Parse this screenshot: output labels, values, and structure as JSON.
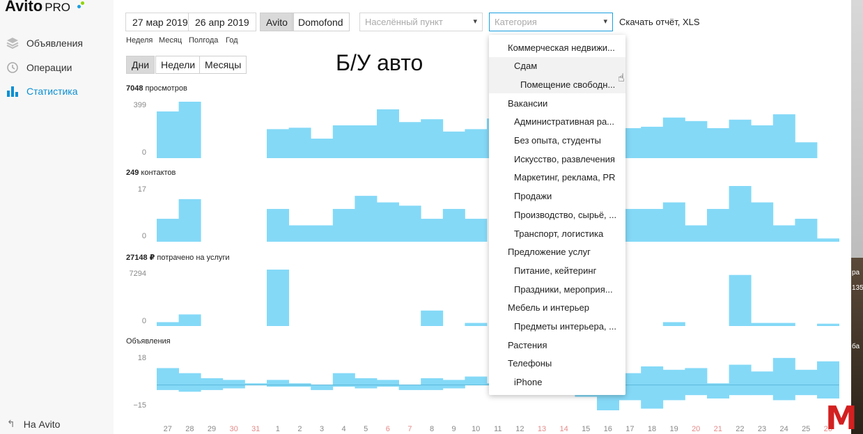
{
  "app": {
    "logo_text": "Avito",
    "logo_suffix": "PRO"
  },
  "sidebar": {
    "items": [
      {
        "label": "Объявления",
        "icon": "layers-icon"
      },
      {
        "label": "Операции",
        "icon": "history-icon"
      },
      {
        "label": "Статистика",
        "icon": "bar-chart-icon",
        "active": true
      }
    ],
    "bottom_link": "На Avito"
  },
  "toolbar": {
    "date_from": "27 мар 2019",
    "date_to": "26 апр 2019",
    "sources": [
      "Avito",
      "Domofond"
    ],
    "active_source": "Avito",
    "location_placeholder": "Населённый пункт",
    "category_placeholder": "Категория",
    "download_label": "Скачать отчёт, XLS",
    "periods": [
      "Неделя",
      "Месяц",
      "Полгода",
      "Год"
    ],
    "granularity": [
      "Дни",
      "Недели",
      "Месяцы"
    ],
    "active_granularity": "Дни"
  },
  "overlay_title": "Б/У авто",
  "charts": {
    "views": {
      "total": "7048",
      "label": "просмотров",
      "max_tick": "399",
      "min_tick": "0"
    },
    "contacts": {
      "total": "249",
      "label": "контактов",
      "max_tick": "17",
      "min_tick": "0"
    },
    "spent": {
      "total": "27148 ₽",
      "label": "потрачено на услуги",
      "max_tick": "7294",
      "min_tick": "0"
    },
    "ads": {
      "label": "Объявления",
      "max_tick": "18",
      "min_tick": "−15"
    }
  },
  "chart_data": [
    {
      "type": "bar",
      "title": "7048 просмотров",
      "categories": [
        "27",
        "28",
        "29",
        "30",
        "31",
        "1",
        "2",
        "3",
        "4",
        "5",
        "6",
        "7",
        "8",
        "9",
        "10",
        "11",
        "12",
        "13",
        "14",
        "15",
        "16",
        "17",
        "18",
        "19",
        "20",
        "21",
        "22",
        "23",
        "24",
        "25",
        "26"
      ],
      "values": [
        330,
        399,
        0,
        0,
        0,
        205,
        215,
        138,
        232,
        232,
        345,
        255,
        275,
        188,
        205,
        280,
        null,
        null,
        null,
        null,
        null,
        212,
        222,
        287,
        262,
        212,
        272,
        232,
        310,
        112,
        null
      ],
      "ylim": [
        0,
        399
      ]
    },
    {
      "type": "bar",
      "title": "249 контактов",
      "categories": [
        "27",
        "28",
        "29",
        "30",
        "31",
        "1",
        "2",
        "3",
        "4",
        "5",
        "6",
        "7",
        "8",
        "9",
        "10",
        "11",
        "12",
        "13",
        "14",
        "15",
        "16",
        "17",
        "18",
        "19",
        "20",
        "21",
        "22",
        "23",
        "24",
        "25",
        "26"
      ],
      "values": [
        7,
        13,
        0,
        0,
        0,
        10,
        5,
        5,
        10,
        14,
        12,
        11,
        7,
        10,
        7,
        null,
        null,
        null,
        null,
        null,
        null,
        10,
        10,
        12,
        5,
        10,
        17,
        12,
        5,
        7,
        1
      ],
      "ylim": [
        0,
        17
      ]
    },
    {
      "type": "bar",
      "title": "27148 ₽ потрачено на услуги",
      "categories": [
        "27",
        "28",
        "29",
        "30",
        "31",
        "1",
        "2",
        "3",
        "4",
        "5",
        "6",
        "7",
        "8",
        "9",
        "10",
        "11",
        "12",
        "13",
        "14",
        "15",
        "16",
        "17",
        "18",
        "19",
        "20",
        "21",
        "22",
        "23",
        "24",
        "25",
        "26"
      ],
      "values": [
        500,
        1500,
        0,
        0,
        0,
        7294,
        0,
        0,
        0,
        0,
        0,
        0,
        2000,
        0,
        400,
        null,
        null,
        null,
        null,
        null,
        null,
        0,
        0,
        500,
        0,
        0,
        6600,
        400,
        400,
        0,
        300
      ],
      "ylim": [
        0,
        7294
      ]
    },
    {
      "type": "bar",
      "title": "Объявления",
      "categories": [
        "27",
        "28",
        "29",
        "30",
        "31",
        "1",
        "2",
        "3",
        "4",
        "5",
        "6",
        "7",
        "8",
        "9",
        "10",
        "11",
        "12",
        "13",
        "14",
        "15",
        "16",
        "17",
        "18",
        "19",
        "20",
        "21",
        "22",
        "23",
        "24",
        "25",
        "26"
      ],
      "series": [
        {
          "values": [
            10,
            7,
            4,
            3,
            1,
            3,
            1,
            -2,
            7,
            4,
            3,
            -2,
            4,
            3,
            5,
            1,
            null,
            null,
            null,
            -5,
            -12,
            7,
            11,
            9,
            10,
            1,
            12,
            8,
            16,
            9,
            14
          ]
        },
        {
          "values": [
            -3,
            -4,
            -3,
            -2,
            0,
            -1,
            -1,
            -3,
            -1,
            -2,
            -1,
            -3,
            -3,
            -2,
            0,
            0,
            null,
            null,
            null,
            -7,
            -15,
            -9,
            -14,
            -9,
            -6,
            -8,
            -6,
            -6,
            -9,
            -6,
            -8
          ]
        }
      ],
      "ylim": [
        -15,
        18
      ]
    }
  ],
  "x_axis": {
    "days": [
      "27",
      "28",
      "29",
      "30",
      "31",
      "1",
      "2",
      "3",
      "4",
      "5",
      "6",
      "7",
      "8",
      "9",
      "10",
      "11",
      "12",
      "13",
      "14",
      "15",
      "16",
      "17",
      "18",
      "19",
      "20",
      "21",
      "22",
      "23",
      "24",
      "25",
      "26"
    ],
    "weekend": [
      false,
      false,
      false,
      true,
      true,
      false,
      false,
      false,
      false,
      false,
      true,
      true,
      false,
      false,
      false,
      false,
      false,
      true,
      true,
      false,
      false,
      false,
      false,
      false,
      true,
      true,
      false,
      false,
      false,
      false,
      true
    ],
    "weekend_color": "#e58a8a",
    "normal_color": "#888888"
  },
  "dropdown": {
    "items": [
      {
        "label": "Коммерческая недвижи...",
        "level": 0
      },
      {
        "label": "Сдам",
        "level": 1,
        "hover": true
      },
      {
        "label": "Помещение свободн...",
        "level": 2,
        "hover": true
      },
      {
        "label": "Вакансии",
        "level": 0
      },
      {
        "label": "Административная ра...",
        "level": 1
      },
      {
        "label": "Без опыта, студенты",
        "level": 1
      },
      {
        "label": "Искусство, развлечения",
        "level": 1
      },
      {
        "label": "Маркетинг, реклама, PR",
        "level": 1
      },
      {
        "label": "Продажи",
        "level": 1
      },
      {
        "label": "Производство, сырьё, ...",
        "level": 1
      },
      {
        "label": "Транспорт, логистика",
        "level": 1
      },
      {
        "label": "Предложение услуг",
        "level": 0
      },
      {
        "label": "Питание, кейтеринг",
        "level": 1
      },
      {
        "label": "Праздники, мероприя...",
        "level": 1
      },
      {
        "label": "Мебель и интерьер",
        "level": 0
      },
      {
        "label": "Предметы интерьера, ...",
        "level": 1
      },
      {
        "label": "Растения",
        "level": 0
      },
      {
        "label": "Телефоны",
        "level": 0
      },
      {
        "label": "iPhone",
        "level": 1
      }
    ]
  },
  "colors": {
    "bar": "#84d9f7",
    "accent": "#0a8fd3",
    "logo_green": "#8fd400",
    "logo_blue": "#1a9fe0"
  },
  "edge": {
    "texts": [
      "ра",
      "135",
      "ба"
    ]
  },
  "watermark": {
    "text": "M"
  }
}
